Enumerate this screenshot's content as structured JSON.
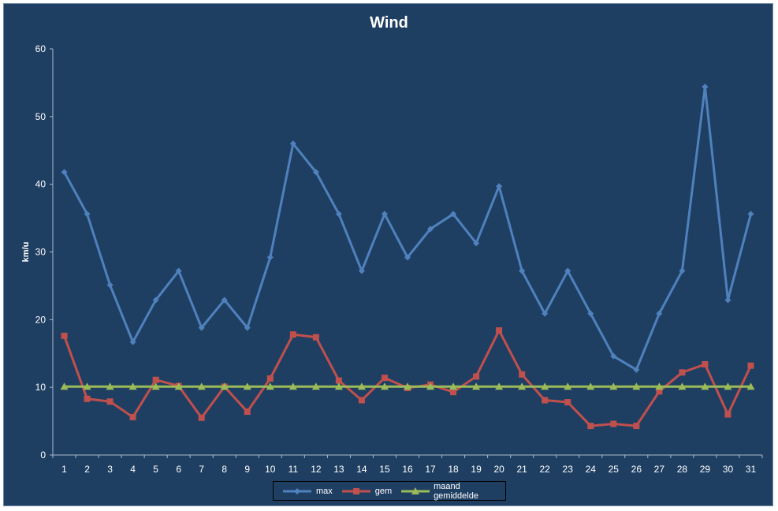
{
  "chart_data": {
    "type": "line",
    "title": "Wind",
    "xlabel": "",
    "ylabel": "km/u",
    "ylim": [
      0,
      60
    ],
    "yticks": [
      0,
      10,
      20,
      30,
      40,
      50,
      60
    ],
    "categories": [
      "1",
      "2",
      "3",
      "4",
      "5",
      "6",
      "7",
      "8",
      "9",
      "10",
      "11",
      "12",
      "13",
      "14",
      "15",
      "16",
      "17",
      "18",
      "19",
      "20",
      "21",
      "22",
      "23",
      "24",
      "25",
      "26",
      "27",
      "28",
      "29",
      "30",
      "31"
    ],
    "grid": false,
    "legend_position": "bottom",
    "series": [
      {
        "name": "max",
        "color": "#4f81bd",
        "marker": "diamond",
        "values": [
          41.8,
          35.6,
          25.1,
          16.7,
          22.9,
          27.2,
          18.8,
          22.9,
          18.8,
          29.2,
          46.0,
          41.8,
          35.6,
          27.2,
          35.6,
          29.2,
          33.4,
          35.6,
          31.3,
          39.7,
          27.2,
          20.9,
          27.2,
          20.9,
          14.6,
          12.6,
          20.9,
          27.2,
          54.4,
          22.9,
          35.6
        ]
      },
      {
        "name": "gem",
        "color": "#c0504d",
        "marker": "square",
        "values": [
          17.6,
          8.3,
          7.9,
          5.6,
          11.1,
          10.2,
          5.5,
          10.1,
          6.4,
          11.3,
          17.8,
          17.4,
          11.0,
          8.1,
          11.4,
          9.9,
          10.4,
          9.3,
          11.6,
          18.4,
          11.9,
          8.1,
          7.8,
          4.3,
          4.6,
          4.3,
          9.4,
          12.2,
          13.4,
          6.0,
          13.2
        ]
      },
      {
        "name": "maand gemiddelde",
        "color": "#9bbb59",
        "marker": "triangle",
        "values": [
          10.1,
          10.1,
          10.1,
          10.1,
          10.1,
          10.1,
          10.1,
          10.1,
          10.1,
          10.1,
          10.1,
          10.1,
          10.1,
          10.1,
          10.1,
          10.1,
          10.1,
          10.1,
          10.1,
          10.1,
          10.1,
          10.1,
          10.1,
          10.1,
          10.1,
          10.1,
          10.1,
          10.1,
          10.1,
          10.1,
          10.1
        ]
      }
    ]
  }
}
